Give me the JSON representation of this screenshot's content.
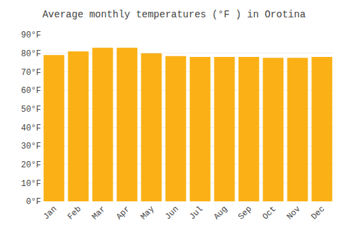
{
  "chart_data": {
    "type": "bar",
    "title": "Average monthly temperatures (°F ) in Orotina",
    "categories": [
      "Jan",
      "Feb",
      "Mar",
      "Apr",
      "May",
      "Jun",
      "Jul",
      "Aug",
      "Sep",
      "Oct",
      "Nov",
      "Dec"
    ],
    "values": [
      79,
      81,
      83,
      83,
      80,
      78.5,
      78,
      78,
      78,
      77.5,
      77.5,
      78
    ],
    "color": "#FBB116",
    "ylim": [
      0,
      90
    ],
    "yticks": [
      {
        "value": 0,
        "label": "0°F"
      },
      {
        "value": 10,
        "label": "10°F"
      },
      {
        "value": 20,
        "label": "20°F"
      },
      {
        "value": 30,
        "label": "30°F"
      },
      {
        "value": 40,
        "label": "40°F"
      },
      {
        "value": 50,
        "label": "50°F"
      },
      {
        "value": 60,
        "label": "60°F"
      },
      {
        "value": 70,
        "label": "70°F"
      },
      {
        "value": 80,
        "label": "80°F"
      },
      {
        "value": 90,
        "label": "90°F"
      }
    ],
    "grid": true
  }
}
